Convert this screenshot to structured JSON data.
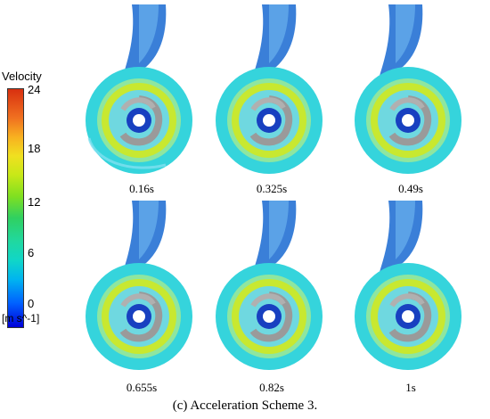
{
  "legend": {
    "title": "Velocity",
    "unit": "[m s^-1]",
    "ticks": [
      "24",
      "18",
      "12",
      "6",
      "0"
    ]
  },
  "panels": [
    {
      "label": "0.16s"
    },
    {
      "label": "0.325s"
    },
    {
      "label": "0.49s"
    },
    {
      "label": "0.655s"
    },
    {
      "label": "0.82s"
    },
    {
      "label": "1s"
    }
  ],
  "caption": "(c) Acceleration Scheme 3.",
  "colors": {
    "volute_fill": "#35d4dc",
    "outlet_fill": "#3a7fd8",
    "ring_yellow": "#c8e830",
    "impeller_gray": "#9a9a9a",
    "hub_blue": "#1840c0"
  }
}
